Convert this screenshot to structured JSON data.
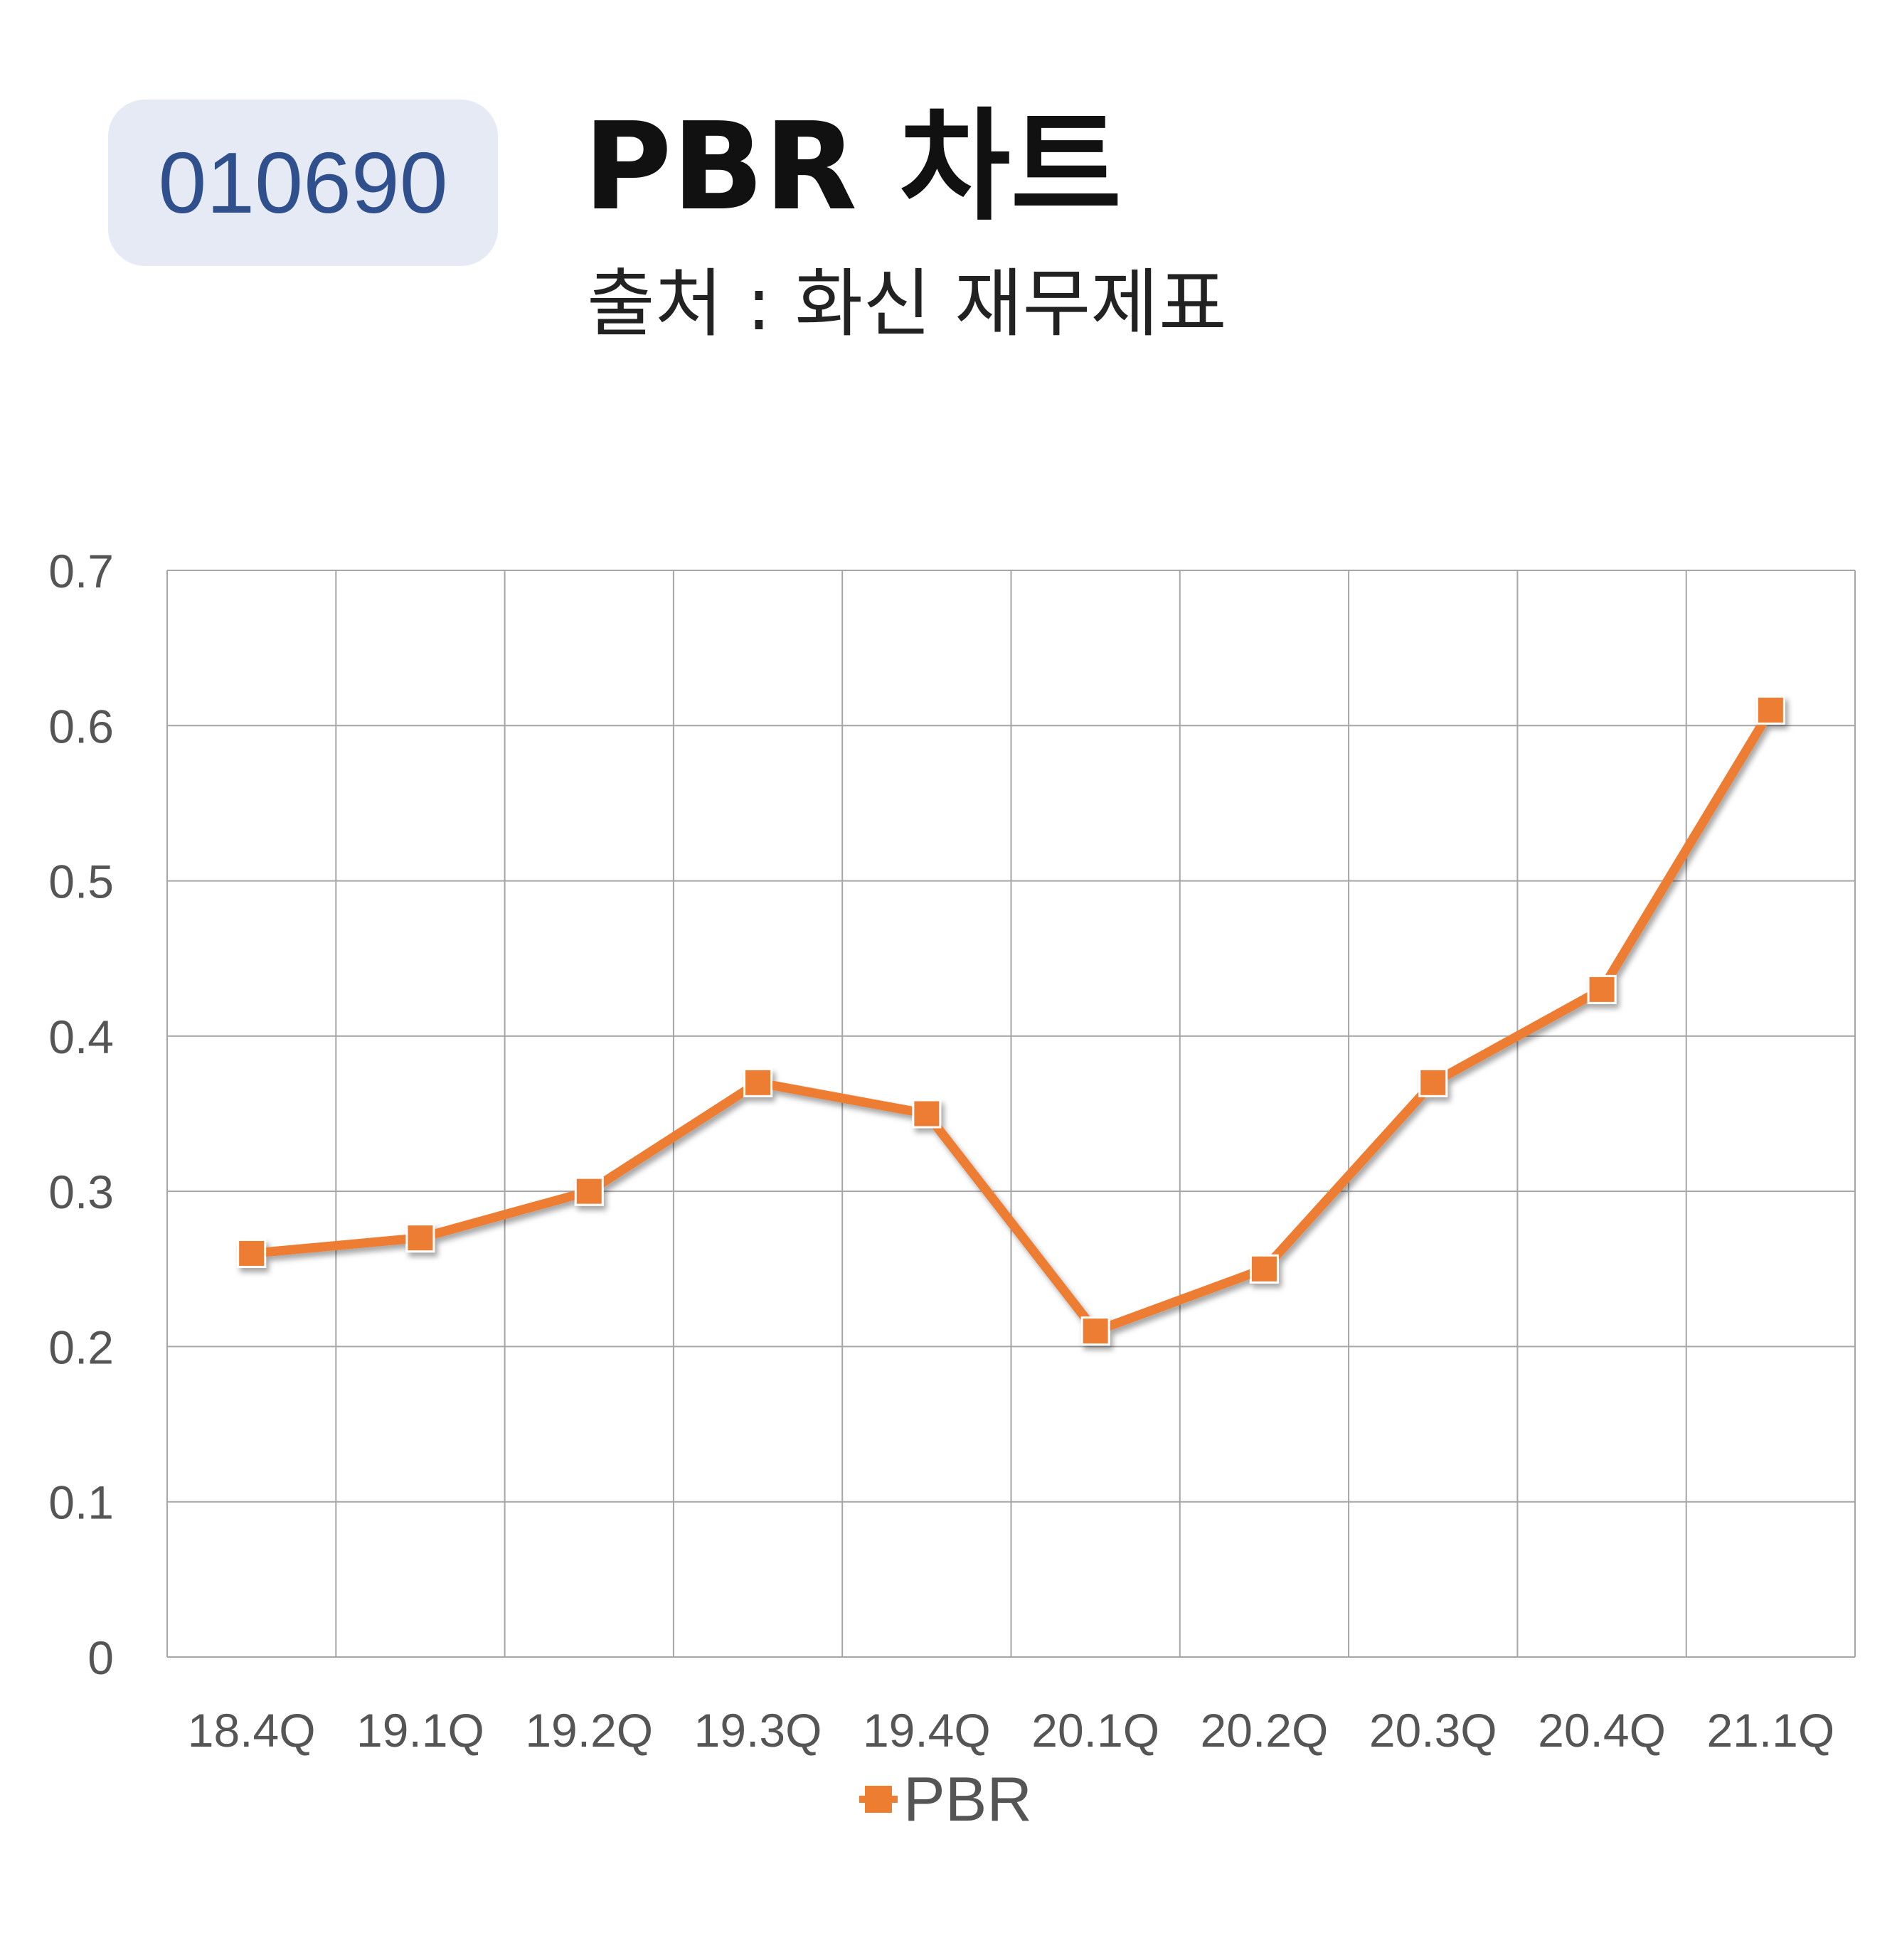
{
  "header": {
    "stock_code": "010690",
    "title": "PBR 차트",
    "subtitle": "출처 : 화신 재무제표"
  },
  "colors": {
    "series": "#ed7d31",
    "grid": "#a6a6a6",
    "badge_bg": "#e5eaf4",
    "badge_text": "#2f4f8d"
  },
  "chart_data": {
    "type": "line",
    "categories": [
      "18.4Q",
      "19.1Q",
      "19.2Q",
      "19.3Q",
      "19.4Q",
      "20.1Q",
      "20.2Q",
      "20.3Q",
      "20.4Q",
      "21.1Q"
    ],
    "series": [
      {
        "name": "PBR",
        "values": [
          0.26,
          0.27,
          0.3,
          0.37,
          0.35,
          0.21,
          0.25,
          0.37,
          0.43,
          0.61
        ]
      }
    ],
    "y_ticks": [
      "0",
      "0.1",
      "0.2",
      "0.3",
      "0.4",
      "0.5",
      "0.6",
      "0.7"
    ],
    "ylim": [
      0,
      0.7
    ],
    "grid": true,
    "marker": "square",
    "legend": "bottom"
  }
}
